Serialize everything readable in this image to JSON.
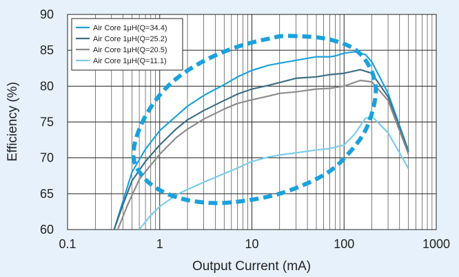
{
  "chart_data": {
    "type": "line",
    "xlabel": "Output Current (mA)",
    "ylabel": "Efficiency (%)",
    "x_scale": "log",
    "xlim": [
      0.1,
      1000
    ],
    "ylim": [
      60,
      90
    ],
    "x_ticks": [
      0.1,
      1,
      10,
      100,
      1000
    ],
    "x_tick_labels": [
      "0.1",
      "1",
      "10",
      "100",
      "1000"
    ],
    "y_ticks": [
      60,
      65,
      70,
      75,
      80,
      85,
      90
    ],
    "y_tick_labels": [
      "60",
      "65",
      "70",
      "75",
      "80",
      "85",
      "90"
    ],
    "grid": true,
    "legend_position": "top-left",
    "series": [
      {
        "name": "Air Core 1μH(Q=34.4)",
        "color": "#1ba1dc",
        "points": [
          [
            0.32,
            60.0
          ],
          [
            0.4,
            64.0
          ],
          [
            0.5,
            68.0
          ],
          [
            0.7,
            71.2
          ],
          [
            1,
            73.8
          ],
          [
            1.5,
            75.8
          ],
          [
            2,
            77.2
          ],
          [
            3,
            78.7
          ],
          [
            5,
            80.2
          ],
          [
            7,
            81.3
          ],
          [
            10,
            82.2
          ],
          [
            15,
            82.9
          ],
          [
            20,
            83.2
          ],
          [
            30,
            83.6
          ],
          [
            50,
            84.1
          ],
          [
            70,
            84.1
          ],
          [
            80,
            84.2
          ],
          [
            100,
            84.6
          ],
          [
            130,
            84.8
          ],
          [
            170,
            84.4
          ],
          [
            200,
            83.4
          ],
          [
            300,
            79.0
          ],
          [
            500,
            71.0
          ]
        ]
      },
      {
        "name": "Air Core 1μH(Q=25.2)",
        "color": "#3d6f86",
        "points": [
          [
            0.32,
            60.0
          ],
          [
            0.4,
            63.5
          ],
          [
            0.5,
            66.8
          ],
          [
            0.7,
            69.5
          ],
          [
            1,
            71.8
          ],
          [
            1.5,
            74.0
          ],
          [
            2,
            75.3
          ],
          [
            3,
            76.6
          ],
          [
            5,
            78.0
          ],
          [
            7,
            78.9
          ],
          [
            10,
            79.6
          ],
          [
            15,
            80.1
          ],
          [
            20,
            80.5
          ],
          [
            30,
            81.1
          ],
          [
            50,
            81.3
          ],
          [
            70,
            81.6
          ],
          [
            100,
            81.8
          ],
          [
            150,
            82.3
          ],
          [
            200,
            81.8
          ],
          [
            300,
            78.5
          ],
          [
            500,
            70.8
          ]
        ]
      },
      {
        "name": "Air Core 1μH(Q=20.5)",
        "color": "#8c8c8c",
        "points": [
          [
            0.35,
            60.0
          ],
          [
            0.45,
            63.5
          ],
          [
            0.6,
            67.0
          ],
          [
            0.8,
            69.0
          ],
          [
            1,
            70.5
          ],
          [
            1.5,
            72.8
          ],
          [
            2,
            74.0
          ],
          [
            3,
            75.4
          ],
          [
            5,
            76.8
          ],
          [
            7,
            77.6
          ],
          [
            10,
            78.1
          ],
          [
            15,
            78.6
          ],
          [
            20,
            79.0
          ],
          [
            30,
            79.2
          ],
          [
            50,
            79.6
          ],
          [
            70,
            79.7
          ],
          [
            100,
            80.0
          ],
          [
            150,
            80.8
          ],
          [
            200,
            80.6
          ],
          [
            300,
            78.0
          ],
          [
            500,
            70.5
          ]
        ]
      },
      {
        "name": "Air Core 1μH(Q=11.1)",
        "color": "#7ccbee",
        "points": [
          [
            0.6,
            60.0
          ],
          [
            0.8,
            62.0
          ],
          [
            1,
            63.2
          ],
          [
            1.5,
            64.8
          ],
          [
            2,
            65.6
          ],
          [
            3,
            66.6
          ],
          [
            5,
            67.8
          ],
          [
            7,
            68.6
          ],
          [
            10,
            69.5
          ],
          [
            15,
            70.1
          ],
          [
            20,
            70.4
          ],
          [
            30,
            70.7
          ],
          [
            50,
            71.1
          ],
          [
            70,
            71.3
          ],
          [
            100,
            71.8
          ],
          [
            130,
            73.3
          ],
          [
            170,
            75.5
          ],
          [
            200,
            75.8
          ],
          [
            300,
            73.5
          ],
          [
            500,
            68.5
          ]
        ]
      }
    ],
    "annotations": [
      {
        "type": "dashed-ellipse",
        "color": "#1ba1dc",
        "points": [
          [
            25,
            87.0
          ],
          [
            70,
            86.5
          ],
          [
            150,
            84.5
          ],
          [
            220,
            80.0
          ],
          [
            180,
            74.5
          ],
          [
            110,
            70.5
          ],
          [
            60,
            67.6
          ],
          [
            20,
            65.0
          ],
          [
            6,
            63.8
          ],
          [
            2.5,
            63.9
          ],
          [
            1.2,
            65.0
          ],
          [
            0.7,
            67.0
          ],
          [
            0.52,
            70.0
          ],
          [
            0.6,
            74.0
          ],
          [
            0.9,
            78.0
          ],
          [
            1.5,
            81.0
          ],
          [
            3,
            83.5
          ],
          [
            7,
            85.5
          ],
          [
            15,
            86.6
          ]
        ]
      }
    ]
  }
}
